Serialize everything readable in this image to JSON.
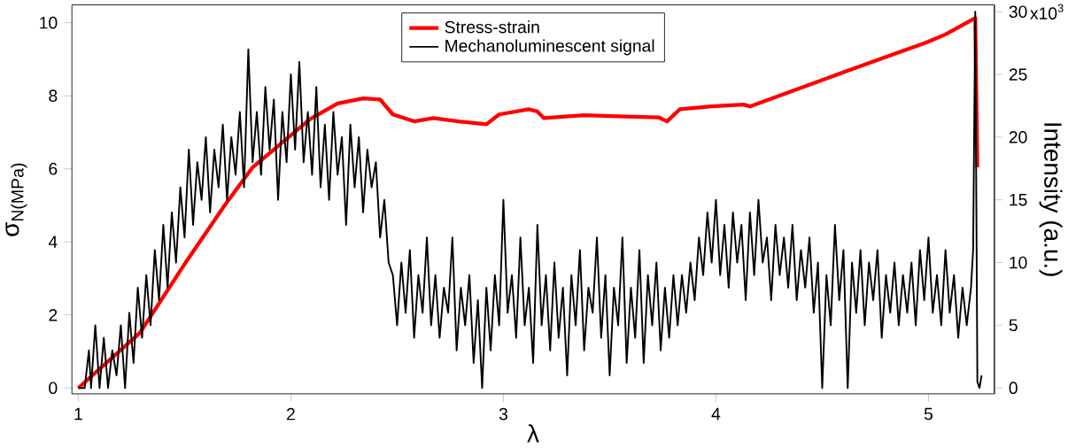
{
  "chart_data": {
    "type": "line",
    "xlabel": "λ",
    "ylabel": "σ$_{N(MPa)}$",
    "y2label": "Intensity (a.u.)",
    "xlim": [
      0.97,
      5.31
    ],
    "ylim": [
      -0.16,
      10.49
    ],
    "y2lim": [
      -0.47,
      30.55
    ],
    "xticks": [
      1,
      2,
      3,
      4,
      5
    ],
    "yticks": [
      0,
      2,
      4,
      6,
      8,
      10
    ],
    "y2ticks": [
      0,
      5,
      10,
      15,
      20,
      25,
      30
    ],
    "annotations": [
      "x10$^{3}$"
    ],
    "legend": "top",
    "series": [
      {
        "name": "Stress-strain",
        "color": "#ff0000",
        "x": [
          1.0,
          1.29,
          1.51,
          1.69,
          1.82,
          2.09,
          2.22,
          2.34,
          2.42,
          2.48,
          2.58,
          2.67,
          2.79,
          2.92,
          2.98,
          3.12,
          3.16,
          3.19,
          3.38,
          3.54,
          3.73,
          3.77,
          3.83,
          3.98,
          4.13,
          4.16,
          4.63,
          4.99,
          5.08,
          5.22,
          5.23
        ],
        "values": [
          0,
          1.51,
          3.48,
          5.01,
          6.04,
          7.36,
          7.79,
          7.93,
          7.9,
          7.49,
          7.3,
          7.39,
          7.3,
          7.22,
          7.49,
          7.63,
          7.57,
          7.39,
          7.47,
          7.44,
          7.41,
          7.3,
          7.63,
          7.71,
          7.76,
          7.71,
          8.71,
          9.46,
          9.68,
          10.13,
          6.04
        ]
      },
      {
        "name": "Mechanoluminescent signal",
        "color": "#000000",
        "axis": "y2",
        "x": [
          1.0,
          1.03,
          1.05,
          1.06,
          1.08,
          1.1,
          1.12,
          1.14,
          1.16,
          1.18,
          1.2,
          1.22,
          1.24,
          1.26,
          1.28,
          1.3,
          1.32,
          1.34,
          1.36,
          1.38,
          1.4,
          1.42,
          1.44,
          1.46,
          1.48,
          1.5,
          1.52,
          1.54,
          1.56,
          1.58,
          1.6,
          1.62,
          1.64,
          1.66,
          1.68,
          1.7,
          1.72,
          1.74,
          1.76,
          1.78,
          1.8,
          1.82,
          1.84,
          1.86,
          1.88,
          1.9,
          1.92,
          1.94,
          1.96,
          1.98,
          2.0,
          2.02,
          2.04,
          2.06,
          2.08,
          2.1,
          2.12,
          2.14,
          2.16,
          2.18,
          2.2,
          2.22,
          2.24,
          2.26,
          2.28,
          2.3,
          2.32,
          2.34,
          2.36,
          2.38,
          2.4,
          2.42,
          2.44,
          2.46,
          2.48,
          2.5,
          2.52,
          2.54,
          2.56,
          2.58,
          2.6,
          2.62,
          2.64,
          2.66,
          2.68,
          2.7,
          2.72,
          2.74,
          2.76,
          2.78,
          2.8,
          2.82,
          2.84,
          2.86,
          2.88,
          2.9,
          2.92,
          2.94,
          2.96,
          2.98,
          3.0,
          3.02,
          3.04,
          3.06,
          3.08,
          3.1,
          3.12,
          3.14,
          3.16,
          3.18,
          3.2,
          3.22,
          3.24,
          3.26,
          3.28,
          3.3,
          3.32,
          3.34,
          3.36,
          3.38,
          3.4,
          3.42,
          3.44,
          3.46,
          3.48,
          3.5,
          3.52,
          3.54,
          3.56,
          3.58,
          3.6,
          3.62,
          3.64,
          3.66,
          3.68,
          3.7,
          3.72,
          3.74,
          3.76,
          3.78,
          3.8,
          3.82,
          3.84,
          3.86,
          3.88,
          3.9,
          3.92,
          3.94,
          3.96,
          3.98,
          4.0,
          4.02,
          4.04,
          4.06,
          4.08,
          4.1,
          4.12,
          4.14,
          4.16,
          4.18,
          4.2,
          4.22,
          4.24,
          4.26,
          4.28,
          4.3,
          4.32,
          4.34,
          4.36,
          4.38,
          4.4,
          4.42,
          4.44,
          4.46,
          4.48,
          4.5,
          4.52,
          4.54,
          4.56,
          4.58,
          4.6,
          4.62,
          4.64,
          4.66,
          4.68,
          4.7,
          4.72,
          4.74,
          4.76,
          4.78,
          4.8,
          4.82,
          4.84,
          4.86,
          4.88,
          4.9,
          4.92,
          4.94,
          4.96,
          4.98,
          5.0,
          5.02,
          5.04,
          5.06,
          5.08,
          5.1,
          5.12,
          5.14,
          5.16,
          5.18,
          5.2,
          5.21,
          5.22,
          5.23,
          5.24,
          5.25
        ],
        "values": [
          0,
          0,
          3,
          0,
          5,
          0,
          4,
          0,
          3,
          1,
          5,
          0,
          6,
          2,
          8,
          4,
          9,
          5,
          11,
          7,
          13,
          8,
          14,
          10,
          16,
          12,
          19,
          13,
          18,
          15,
          20,
          14,
          19,
          16,
          21,
          15,
          20,
          17,
          22,
          16,
          27,
          18,
          22,
          17,
          24,
          19,
          23,
          15,
          22,
          18,
          25,
          19,
          26,
          18,
          22,
          17,
          24,
          16,
          21,
          15,
          22,
          17,
          20,
          13,
          21,
          16,
          20,
          14,
          19,
          16,
          18,
          12,
          15,
          10,
          9,
          5,
          10,
          6,
          11,
          4,
          9,
          6,
          12,
          5,
          9,
          4,
          8,
          6,
          12,
          3,
          8,
          5,
          9,
          2,
          7,
          0,
          8,
          3,
          9,
          5,
          15,
          6,
          9,
          4,
          12,
          5,
          8,
          2,
          13,
          5,
          9,
          3,
          10,
          4,
          8,
          1,
          9,
          5,
          11,
          3,
          8,
          6,
          12,
          4,
          9,
          1,
          8,
          5,
          12,
          2,
          8,
          4,
          11,
          2,
          9,
          5,
          10,
          3,
          8,
          4,
          9,
          5,
          9,
          6,
          10,
          7,
          12,
          9,
          14,
          10,
          15,
          9,
          13,
          8,
          14,
          10,
          13,
          7,
          14,
          9,
          15,
          10,
          12,
          7,
          13,
          9,
          12,
          8,
          13,
          7,
          11,
          8,
          12,
          6,
          10,
          0,
          9,
          5,
          13,
          7,
          11,
          0,
          10,
          6,
          11,
          5,
          10,
          7,
          11,
          4,
          9,
          6,
          10,
          5,
          9,
          6,
          10,
          5,
          11,
          7,
          12,
          6,
          9,
          5,
          11,
          6,
          9,
          4,
          8,
          5,
          8,
          11,
          30,
          0.5,
          0,
          1
        ]
      }
    ]
  }
}
